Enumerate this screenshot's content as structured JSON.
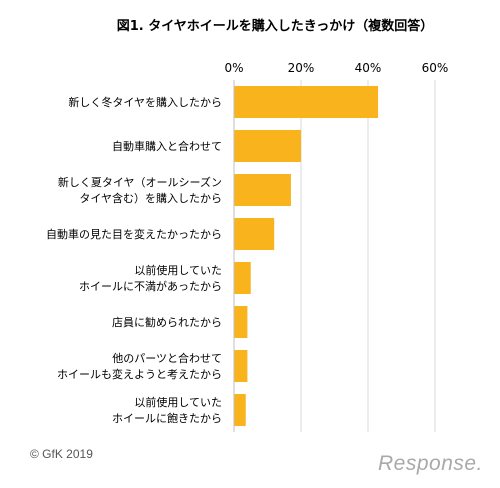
{
  "chart_data": {
    "type": "bar",
    "orientation": "horizontal",
    "title": "図1. タイヤホイールを購入したきっかけ（複数回答）",
    "xlim": [
      0,
      60
    ],
    "ticks": [
      "0%",
      "20%",
      "40%",
      "60%"
    ],
    "tick_values": [
      0,
      20,
      40,
      60
    ],
    "categories": [
      [
        "新しく冬タイヤを購入したから"
      ],
      [
        "自動車購入と合わせて"
      ],
      [
        "新しく夏タイヤ（オールシーズン",
        "タイヤ含む）を購入したから"
      ],
      [
        "自動車の見た目を変えたかったから"
      ],
      [
        "以前使用していた",
        "ホイールに不満があったから"
      ],
      [
        "店員に勧められたから"
      ],
      [
        "他のパーツと合わせて",
        "ホイールも変えようと考えたから"
      ],
      [
        "以前使用していた",
        "ホイールに飽きたから"
      ]
    ],
    "values": [
      43,
      20,
      17,
      12,
      5,
      4,
      4,
      3.5
    ],
    "bar_color": "#F9B31C",
    "grid": true
  },
  "footer": "© GfK 2019",
  "logo": "Response."
}
